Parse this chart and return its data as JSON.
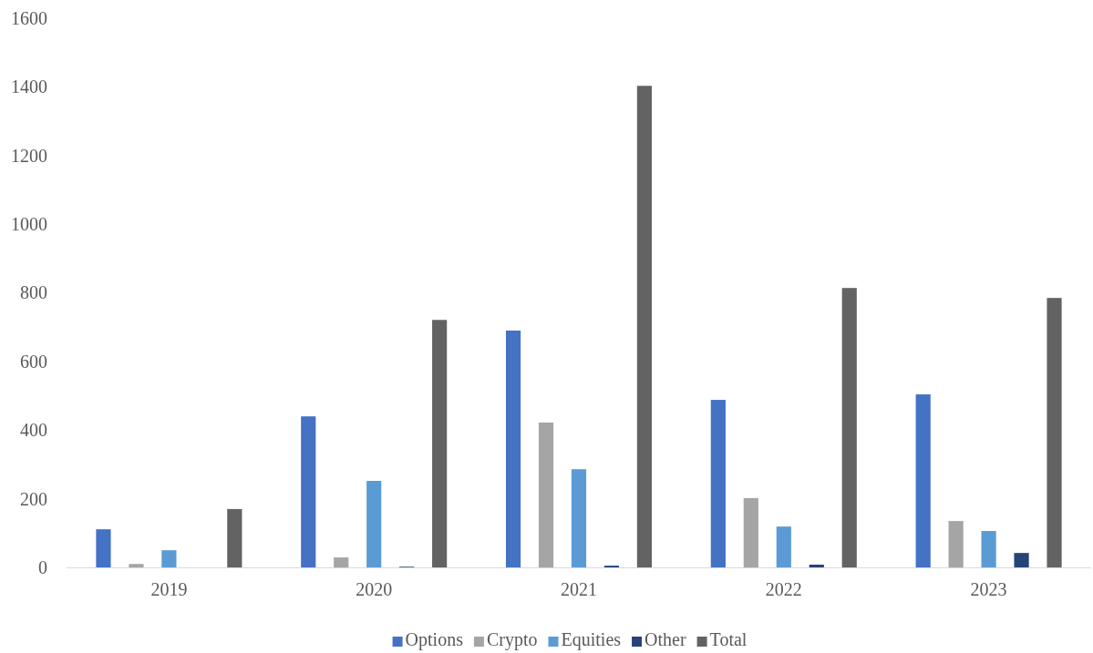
{
  "chart_data": {
    "type": "bar",
    "categories": [
      "2019",
      "2020",
      "2021",
      "2022",
      "2023"
    ],
    "series": [
      {
        "name": "Options",
        "color": "#4472c4",
        "values": [
          111,
          440,
          690,
          488,
          504
        ]
      },
      {
        "name": "Crypto",
        "color": "#a5a5a5",
        "values": [
          10,
          29,
          422,
          202,
          135
        ]
      },
      {
        "name": "Equities",
        "color": "#5b9bd5",
        "values": [
          50,
          252,
          286,
          119,
          106
        ]
      },
      {
        "name": "Other",
        "color": "#264478",
        "values": [
          0,
          2,
          5,
          8,
          42
        ]
      },
      {
        "name": "Total",
        "color": "#636363",
        "values": [
          170,
          721,
          1403,
          814,
          785
        ]
      }
    ],
    "ylim": [
      0,
      1600
    ],
    "yticks": [
      0,
      200,
      400,
      600,
      800,
      1000,
      1200,
      1400,
      1600
    ],
    "grid": false,
    "legend": "bottom"
  }
}
